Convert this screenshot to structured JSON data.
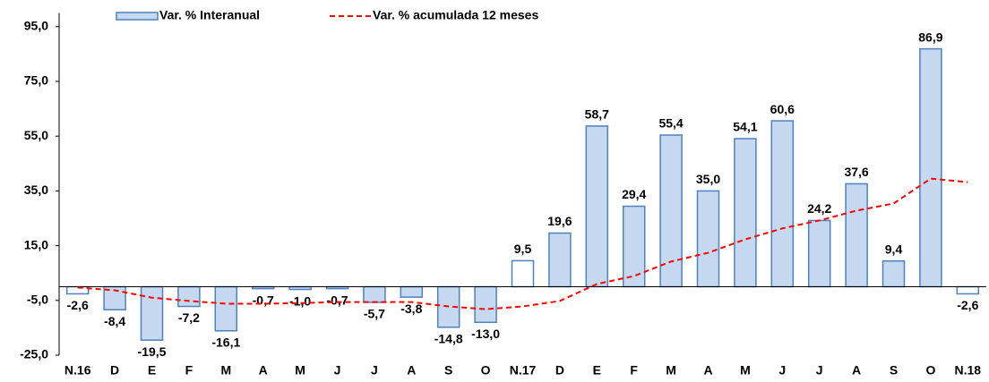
{
  "chart_data": {
    "type": "bar-line",
    "categories": [
      "N.16",
      "D",
      "E",
      "F",
      "M",
      "A",
      "M",
      "J",
      "J",
      "A",
      "S",
      "O",
      "N.17",
      "D",
      "E",
      "F",
      "M",
      "A",
      "M",
      "J",
      "J",
      "A",
      "S",
      "O",
      "N.18"
    ],
    "series": [
      {
        "name": "Var. % Interanual",
        "type": "bar",
        "color": "#c6d9f1",
        "edge_color": "#4f81bd",
        "colors": [
          "#ffffff",
          "#c6d9f1",
          "#c6d9f1",
          "#c6d9f1",
          "#c6d9f1",
          "#c6d9f1",
          "#c6d9f1",
          "#c6d9f1",
          "#c6d9f1",
          "#c6d9f1",
          "#c6d9f1",
          "#c6d9f1",
          "#ffffff",
          "#c6d9f1",
          "#c6d9f1",
          "#c6d9f1",
          "#c6d9f1",
          "#c6d9f1",
          "#c6d9f1",
          "#c6d9f1",
          "#c6d9f1",
          "#c6d9f1",
          "#c6d9f1",
          "#c6d9f1",
          "#ffffff"
        ],
        "values": [
          -2.6,
          -8.4,
          -19.5,
          -7.2,
          -16.1,
          -0.7,
          -1.0,
          -0.7,
          -5.7,
          -3.8,
          -14.8,
          -13.0,
          9.5,
          19.6,
          58.7,
          29.4,
          55.4,
          35.0,
          54.1,
          60.6,
          24.2,
          37.6,
          9.4,
          86.9,
          -2.6
        ],
        "value_labels": [
          "-2,6",
          "-8,4",
          "-19,5",
          "-7,2",
          "-16,1",
          "-0,7",
          "-1,0",
          "-0,7",
          "-5,7",
          "-3,8",
          "-14,8",
          "-13,0",
          "9,5",
          "19,6",
          "58,7",
          "29,4",
          "55,4",
          "35,0",
          "54,1",
          "60,6",
          "24,2",
          "37,6",
          "9,4",
          "86,9",
          "-2,6"
        ]
      },
      {
        "name": "Var. % acumulada 12 meses",
        "type": "line",
        "color": "#ff0000",
        "dashed": true,
        "values": [
          -0.3,
          -1.3,
          -4.0,
          -5.2,
          -6.2,
          -6.2,
          -6.0,
          -5.6,
          -5.6,
          -5.6,
          -7.2,
          -8.2,
          -7.2,
          -5.2,
          1.0,
          3.9,
          9.2,
          12.4,
          17.3,
          21.3,
          24.2,
          27.8,
          30.4,
          39.5,
          38.2
        ]
      }
    ],
    "ylim": [
      -25,
      100
    ],
    "yticks": [
      {
        "value": -25,
        "label": "-25,0"
      },
      {
        "value": -5,
        "label": "-5,0"
      },
      {
        "value": 15,
        "label": "15,0"
      },
      {
        "value": 35,
        "label": "35,0"
      },
      {
        "value": 55,
        "label": "55,0"
      },
      {
        "value": 75,
        "label": "75,0"
      },
      {
        "value": 95,
        "label": "95,0"
      }
    ],
    "grid": false
  }
}
